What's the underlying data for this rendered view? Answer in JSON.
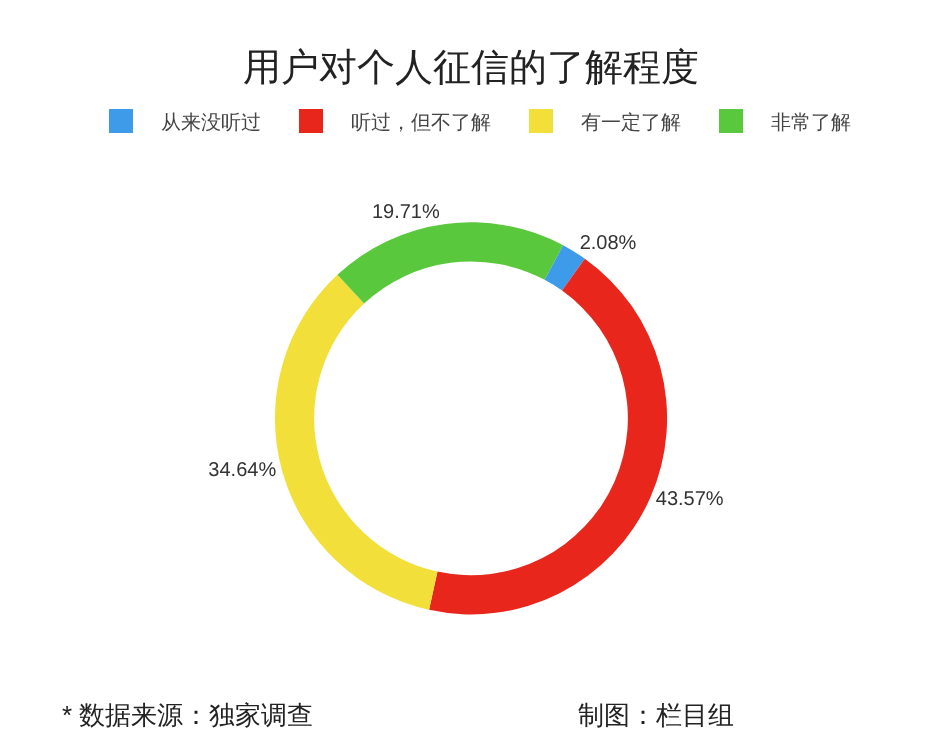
{
  "chart_data": {
    "type": "donut",
    "title": "用户对个人征信的了解程度",
    "categories": [
      "从来没听过",
      "听过，但不了解",
      "有一定了解",
      "非常了解"
    ],
    "values": [
      2.08,
      43.57,
      34.64,
      19.71
    ],
    "value_labels": [
      "2.08%",
      "43.57%",
      "34.64%",
      "19.71%"
    ],
    "colors": [
      "#3d9be9",
      "#e8261c",
      "#f3df3a",
      "#5ac83c"
    ],
    "legend": "top",
    "annotations": [
      "* 数据来源：独家调查",
      "制图：栏目组"
    ]
  }
}
